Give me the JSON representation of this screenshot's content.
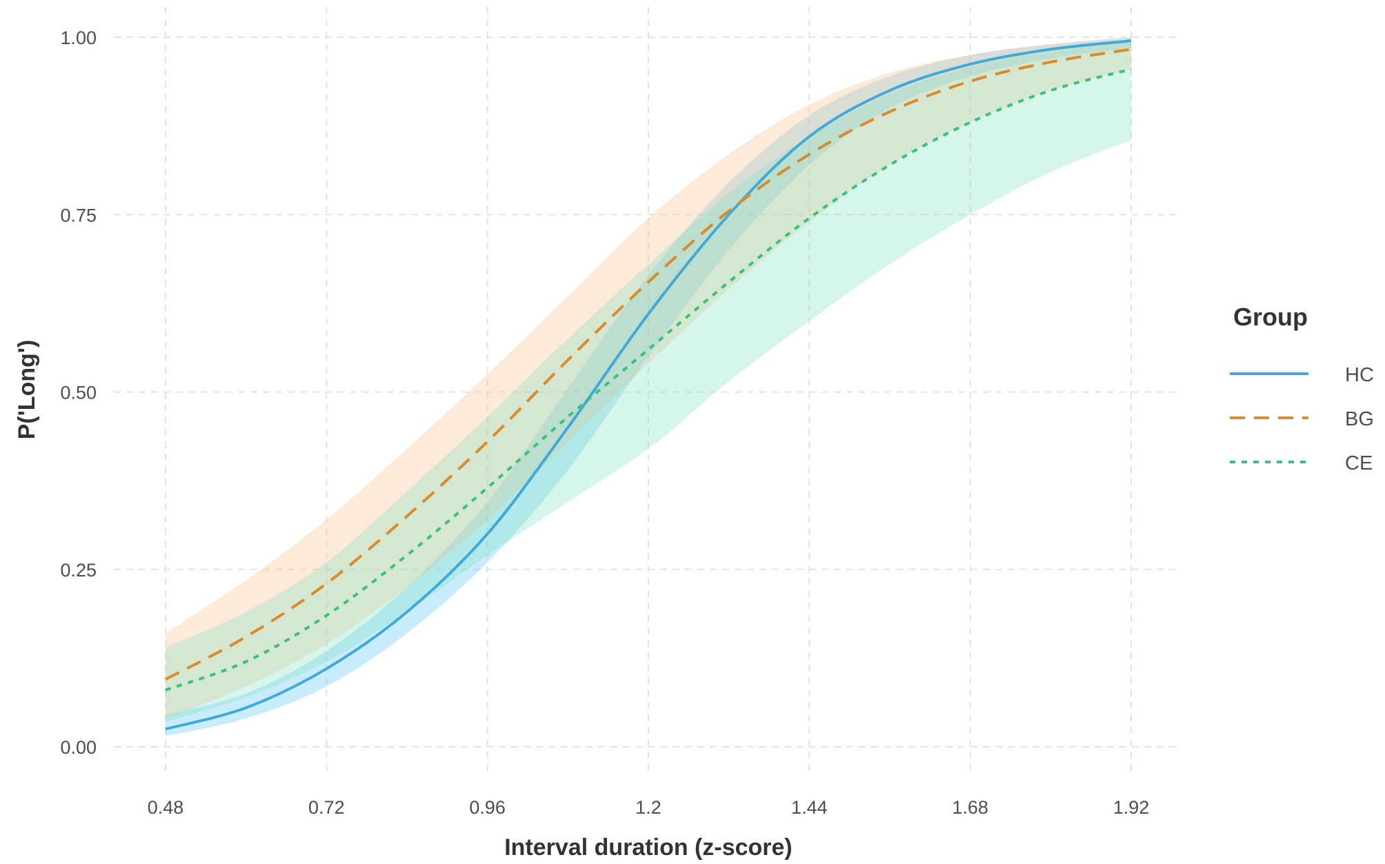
{
  "chart_data": {
    "type": "line",
    "title": "",
    "xlabel": "Interval duration (z-score)",
    "ylabel": "P('Long')",
    "xlim": [
      0.48,
      1.92
    ],
    "ylim": [
      0,
      1
    ],
    "x_ticks": [
      "0.48",
      "0.72",
      "0.96",
      "1.2",
      "1.44",
      "1.68",
      "1.92"
    ],
    "y_ticks": [
      "0.00",
      "0.25",
      "0.50",
      "0.75",
      "1.00"
    ],
    "grid": true,
    "legend": {
      "title": "Group",
      "placement": "right"
    },
    "x": [
      0.48,
      0.6,
      0.72,
      0.84,
      0.96,
      1.08,
      1.2,
      1.32,
      1.44,
      1.56,
      1.68,
      1.8,
      1.92
    ],
    "series": [
      {
        "name": "HC",
        "color": "#3fa9d9",
        "dash": "solid",
        "band_color": "#57c4f2",
        "values": [
          0.025,
          0.055,
          0.11,
          0.19,
          0.3,
          0.45,
          0.61,
          0.75,
          0.86,
          0.925,
          0.962,
          0.983,
          0.995
        ],
        "lower": [
          0.015,
          0.04,
          0.085,
          0.16,
          0.26,
          0.39,
          0.55,
          0.7,
          0.82,
          0.9,
          0.945,
          0.97,
          0.985
        ],
        "upper": [
          0.045,
          0.075,
          0.135,
          0.225,
          0.345,
          0.505,
          0.665,
          0.795,
          0.89,
          0.945,
          0.975,
          0.99,
          1.0
        ]
      },
      {
        "name": "BG",
        "color": "#d98b2b",
        "dash": "dashed",
        "band_color": "#fcbf8a",
        "values": [
          0.095,
          0.155,
          0.23,
          0.325,
          0.43,
          0.545,
          0.655,
          0.755,
          0.835,
          0.895,
          0.938,
          0.965,
          0.983
        ],
        "lower": [
          0.04,
          0.085,
          0.145,
          0.225,
          0.32,
          0.43,
          0.54,
          0.645,
          0.74,
          0.82,
          0.88,
          0.925,
          0.955
        ],
        "upper": [
          0.16,
          0.235,
          0.32,
          0.42,
          0.525,
          0.635,
          0.745,
          0.835,
          0.905,
          0.95,
          0.975,
          0.99,
          0.998
        ]
      },
      {
        "name": "CE",
        "color": "#36c27a",
        "dash": "dotted",
        "band_color": "#7fe0c0",
        "values": [
          0.08,
          0.12,
          0.185,
          0.27,
          0.365,
          0.465,
          0.56,
          0.655,
          0.745,
          0.82,
          0.88,
          0.925,
          0.955
        ],
        "lower": [
          0.035,
          0.07,
          0.12,
          0.19,
          0.27,
          0.345,
          0.42,
          0.515,
          0.6,
          0.68,
          0.75,
          0.81,
          0.855
        ],
        "upper": [
          0.14,
          0.19,
          0.26,
          0.36,
          0.465,
          0.575,
          0.68,
          0.78,
          0.86,
          0.92,
          0.958,
          0.98,
          0.993
        ]
      }
    ]
  }
}
